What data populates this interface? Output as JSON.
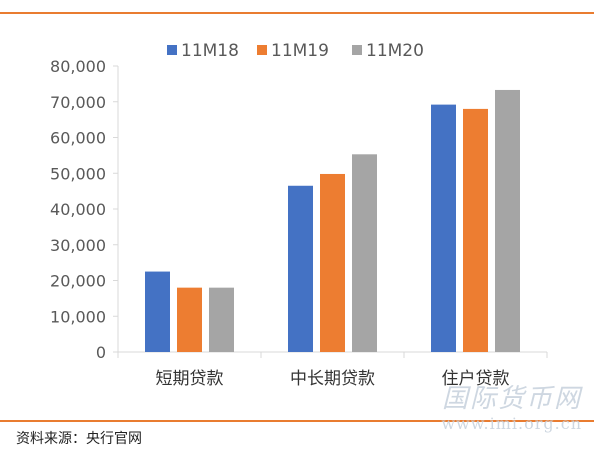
{
  "source_text": "资料来源：央行官网",
  "watermark": {
    "name": "国际货币网",
    "url": "www.imi.org.cn"
  },
  "colors": {
    "rule": "#E97C30",
    "axis": "#d9d9d9",
    "tick_text": "#595959"
  },
  "chart_data": {
    "type": "bar",
    "title": "",
    "xlabel": "",
    "ylabel": "",
    "categories": [
      "短期贷款",
      "中长期贷款",
      "住户贷款"
    ],
    "series": [
      {
        "name": "11M18",
        "color": "#4472C4",
        "values": [
          22500,
          46500,
          69200
        ]
      },
      {
        "name": "11M19",
        "color": "#ED7D31",
        "values": [
          18000,
          49800,
          68000
        ]
      },
      {
        "name": "11M20",
        "color": "#A5A5A5",
        "values": [
          18000,
          55300,
          73300
        ]
      }
    ],
    "ylim": [
      0,
      80000
    ],
    "yticks": [
      0,
      10000,
      20000,
      30000,
      40000,
      50000,
      60000,
      70000,
      80000
    ],
    "ytick_labels": [
      "0",
      "10,000",
      "20,000",
      "30,000",
      "40,000",
      "50,000",
      "60,000",
      "70,000",
      "80,000"
    ],
    "grid": false,
    "legend_position": "top"
  }
}
